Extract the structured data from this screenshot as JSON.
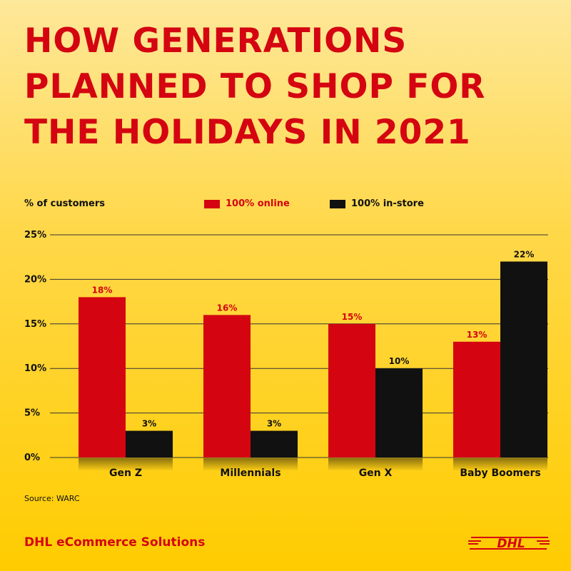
{
  "title_lines": [
    "HOW GENERATIONS",
    "PLANNED TO SHOP FOR",
    "THE HOLIDAYS IN 2021"
  ],
  "ylabel": "% of customers",
  "source": "Source: WARC",
  "brand": "DHL eCommerce Solutions",
  "logo_text": "DHL",
  "colors": {
    "online": "#d40511",
    "instore": "#111111",
    "title": "#d40511",
    "background": "#ffcc00"
  },
  "chart_data": {
    "type": "bar",
    "title": "HOW GENERATIONS PLANNED TO SHOP FOR THE HOLIDAYS IN 2021",
    "xlabel": "",
    "ylabel": "% of customers",
    "categories": [
      "Gen Z",
      "Millennials",
      "Gen X",
      "Baby Boomers"
    ],
    "series": [
      {
        "name": "100% online",
        "values": [
          18,
          16,
          15,
          13
        ],
        "color": "#d40511"
      },
      {
        "name": "100% in-store",
        "values": [
          3,
          3,
          10,
          22
        ],
        "color": "#111111"
      }
    ],
    "ylim": [
      0,
      25
    ],
    "yticks": [
      0,
      5,
      10,
      15,
      20,
      25
    ],
    "ytick_labels": [
      "0%",
      "5%",
      "10%",
      "15%",
      "20%",
      "25%"
    ],
    "value_suffix": "%",
    "grid": true,
    "legend": "top"
  }
}
